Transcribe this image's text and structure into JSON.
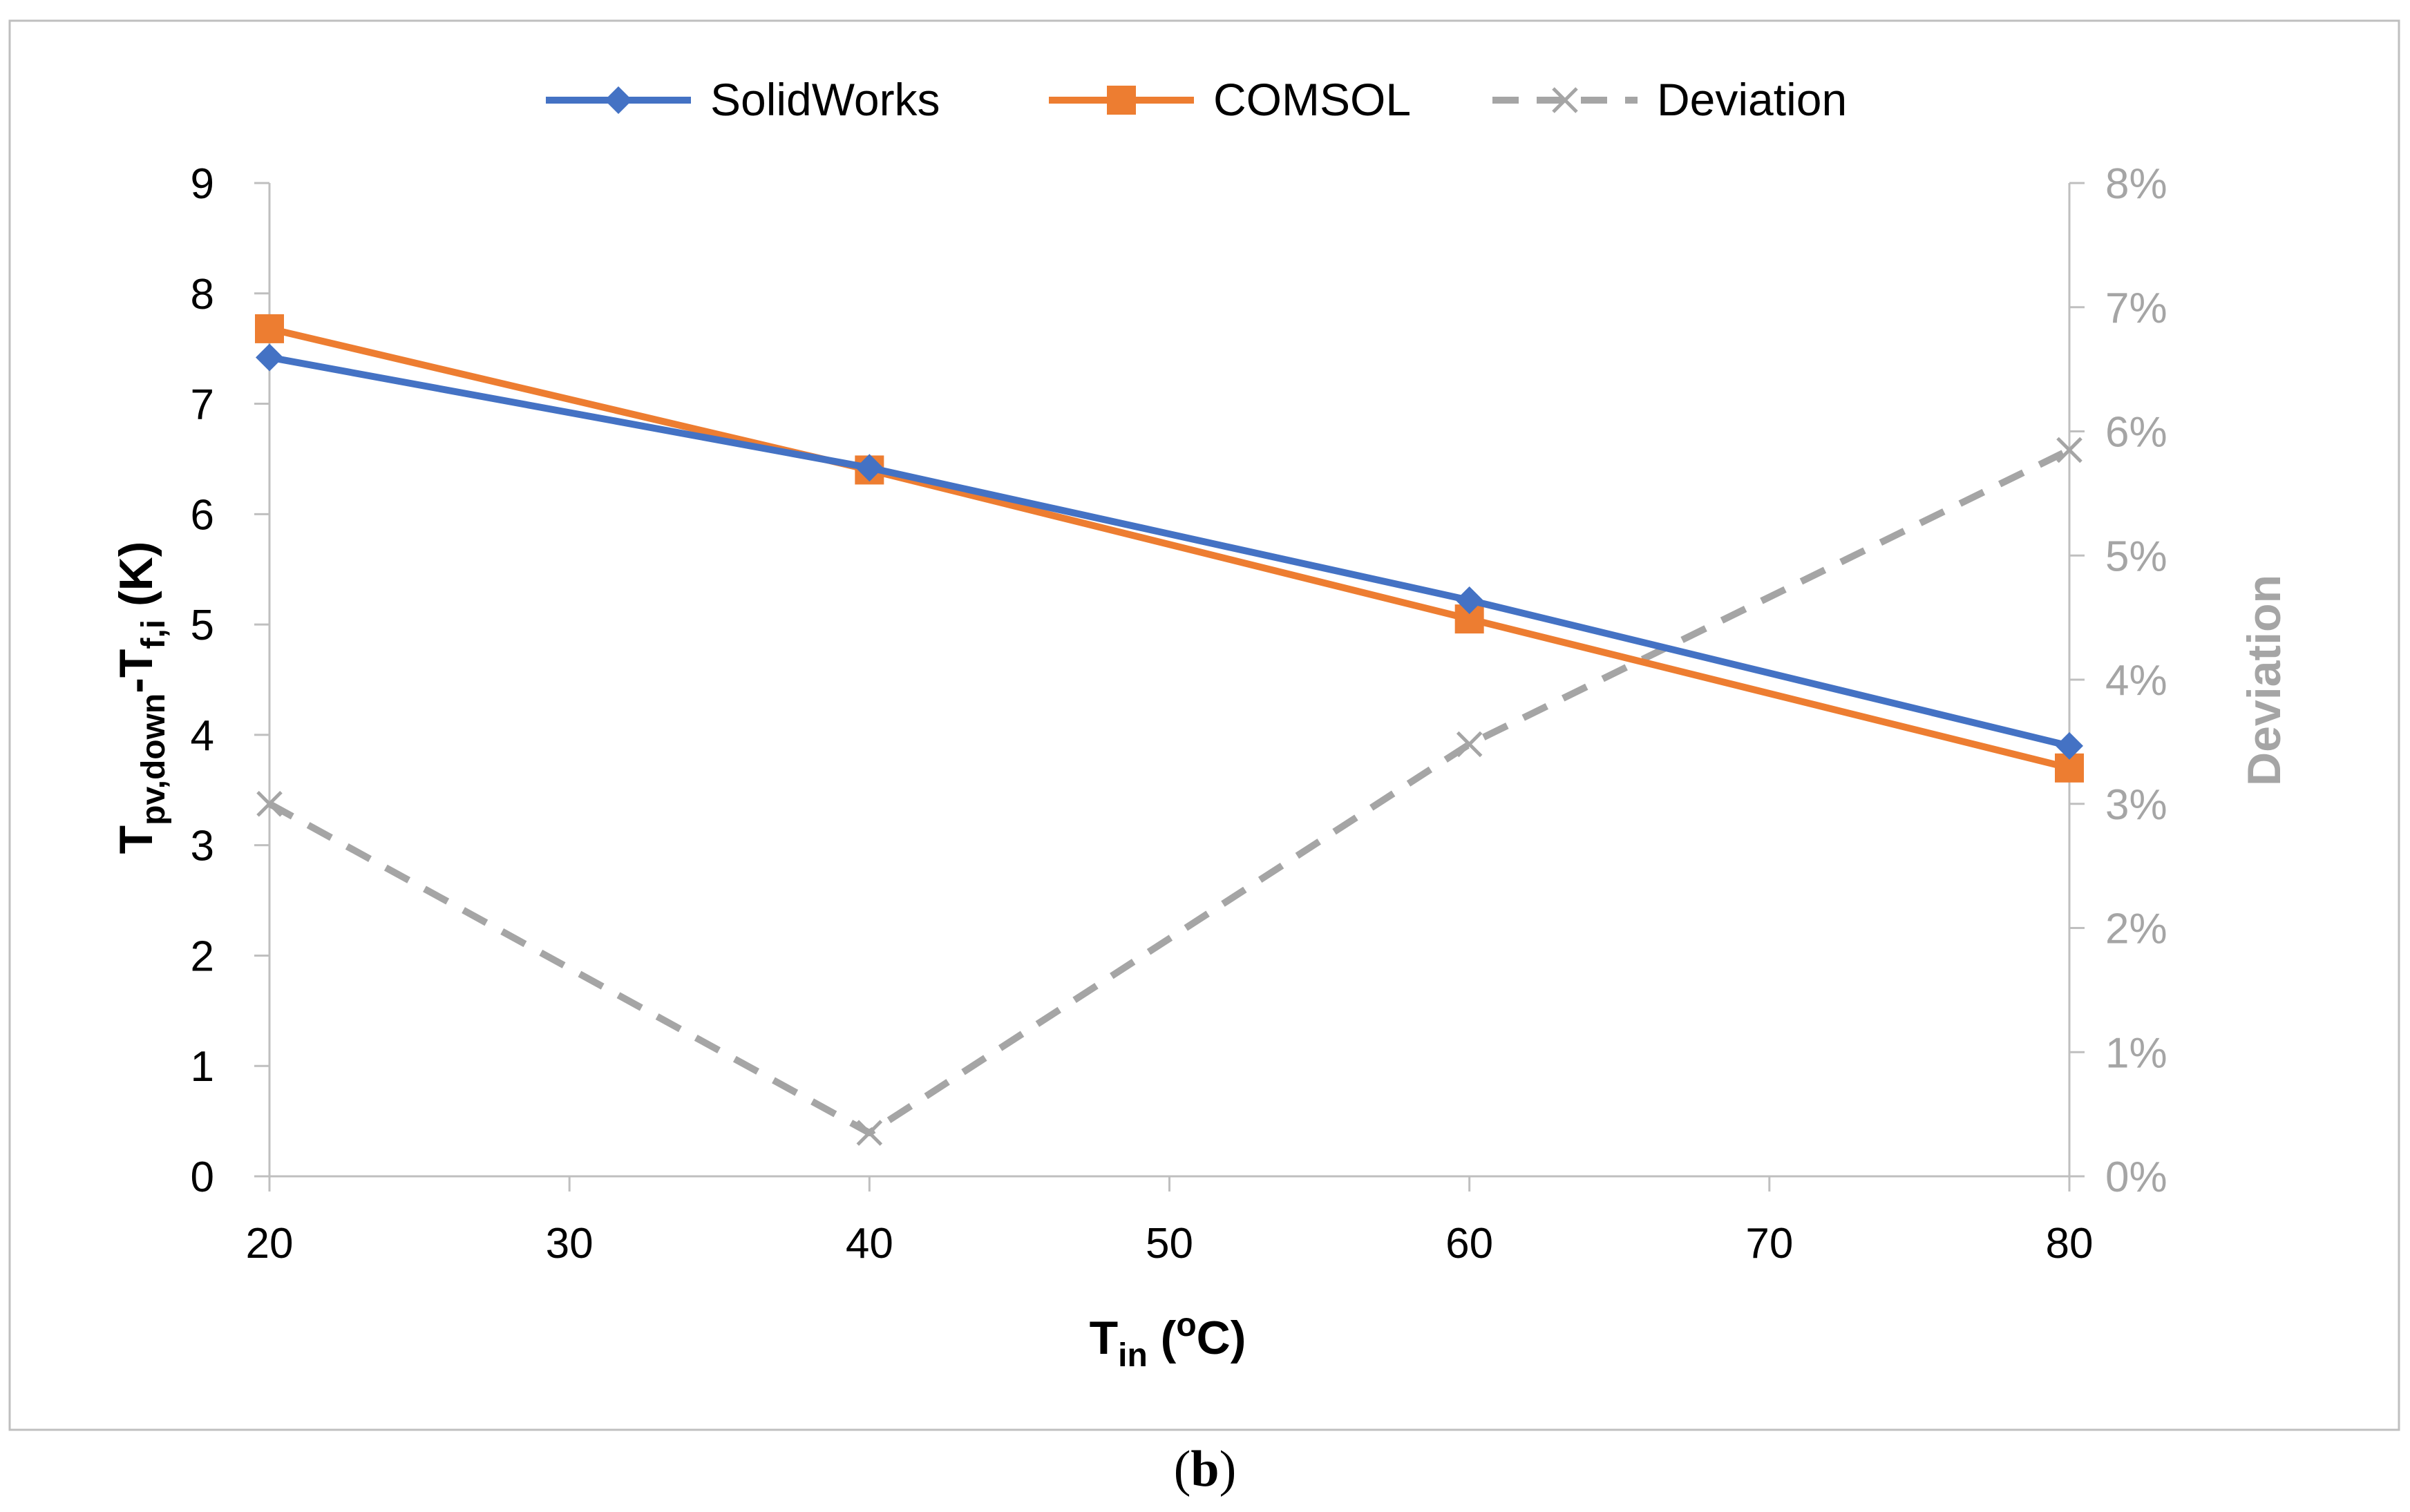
{
  "chart_data": {
    "type": "line",
    "x": [
      20,
      40,
      60,
      80
    ],
    "x_tick_labels": [
      "20",
      "30",
      "40",
      "50",
      "60",
      "70",
      "80"
    ],
    "xlim": [
      20,
      80
    ],
    "xlabel": {
      "main": "T",
      "sub": "in",
      "tail": " (",
      "sup": "o",
      "unit": "C)"
    },
    "ylabel": {
      "main": "T",
      "sub1": "pv,down",
      "mid": "-T",
      "sub2": "f,i",
      "tail": " (K)"
    },
    "ylim": [
      0,
      9
    ],
    "y_tick_labels": [
      "0",
      "1",
      "2",
      "3",
      "4",
      "5",
      "6",
      "7",
      "8",
      "9"
    ],
    "y2label": "Deviation",
    "y2lim": [
      0,
      0.08
    ],
    "y2_tick_labels": [
      "0%",
      "1%",
      "2%",
      "3%",
      "4%",
      "5%",
      "6%",
      "7%",
      "8%"
    ],
    "legend_position": "top",
    "series": [
      {
        "name": "SolidWorks",
        "axis": "left",
        "values": [
          7.42,
          6.42,
          5.22,
          3.9
        ],
        "color": "#4472C4",
        "marker": "diamond",
        "dash": "solid"
      },
      {
        "name": "COMSOL",
        "axis": "right_none",
        "values": [
          7.68,
          6.4,
          5.05,
          3.7
        ],
        "color": "#ED7D31",
        "marker": "square",
        "dash": "solid"
      },
      {
        "name": "Deviation",
        "axis": "right",
        "values": [
          0.03,
          0.0035,
          0.0348,
          0.0585
        ],
        "color": "#A5A5A5",
        "marker": "x",
        "dash": "dashed"
      }
    ]
  },
  "caption": {
    "open": "(",
    "letter": "b",
    "close": ")"
  }
}
